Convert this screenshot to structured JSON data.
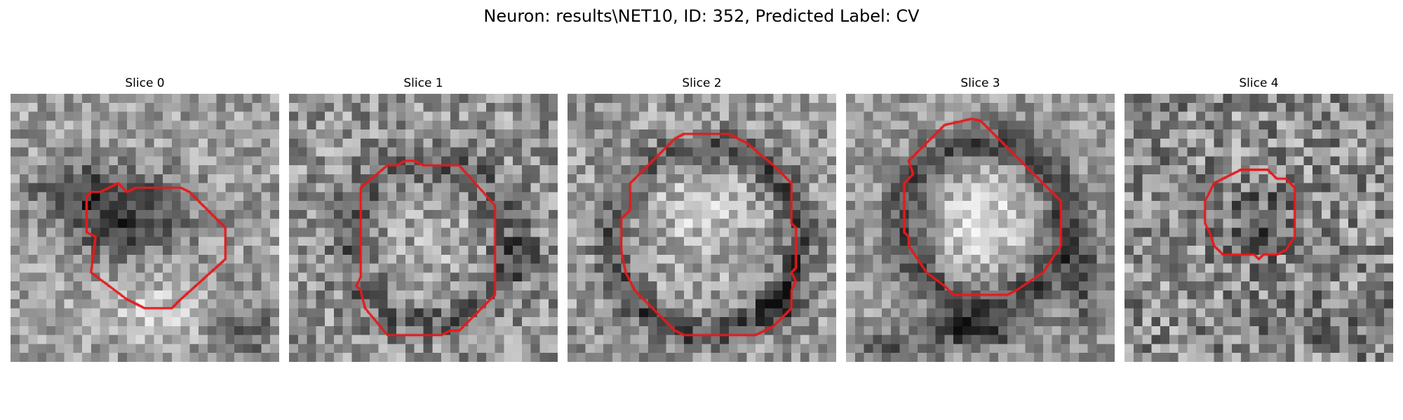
{
  "figure": {
    "title": "Neuron: results\\NET10, ID: 352, Predicted Label: CV"
  },
  "slices": [
    {
      "label": "Slice 0",
      "texture": "dark-blob-lower-right",
      "seed": 11
    },
    {
      "label": "Slice 1",
      "texture": "ring-mid",
      "seed": 23
    },
    {
      "label": "Slice 2",
      "texture": "bright-core-dark-ring",
      "seed": 37
    },
    {
      "label": "Slice 3",
      "texture": "bright-core-dark-ring-bottom-shadow",
      "seed": 41
    },
    {
      "label": "Slice 4",
      "texture": "noise-small-dark-core",
      "seed": 53
    }
  ],
  "style": {
    "contour_color": "#e41a1c",
    "colormap": "gray"
  }
}
